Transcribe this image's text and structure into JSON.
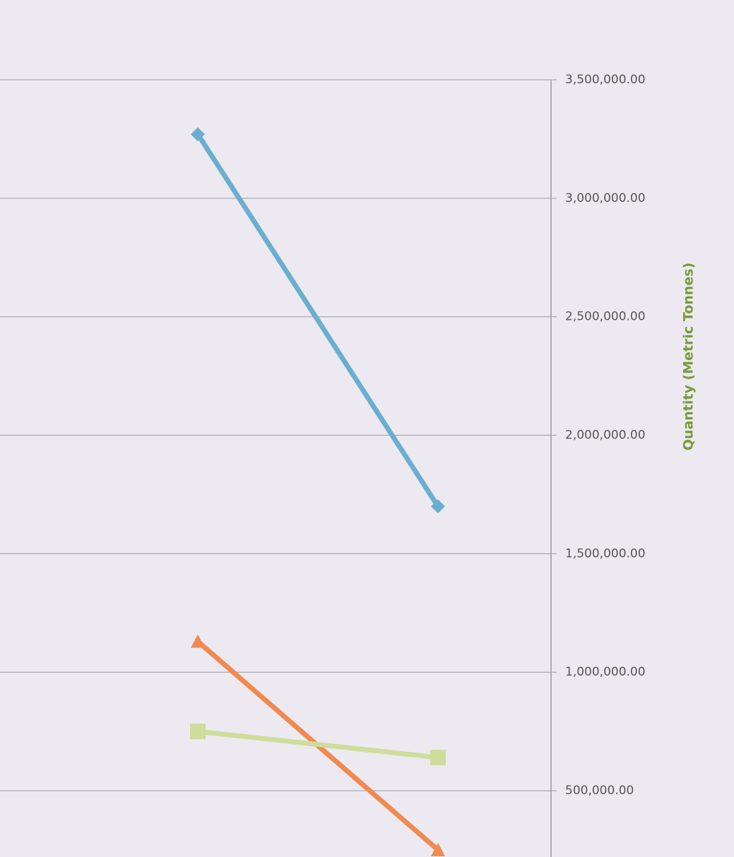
{
  "chart_data": {
    "type": "line",
    "y_axis_label": "Quantity (Metric Tonnes)",
    "categories": [
      null,
      null
    ],
    "series": [
      {
        "color": "#6aaed0",
        "values": [
          1700000,
          3270000
        ],
        "marker": "diamond"
      },
      {
        "color": "#f08a50",
        "values": [
          250000,
          1130000
        ],
        "marker": "triangle"
      },
      {
        "color": "#cfdc9c",
        "values": [
          640000,
          750000
        ],
        "marker": "square"
      }
    ],
    "ylim": [
      250000,
      3500000
    ],
    "yticks": [
      {
        "value": 500000,
        "label": "500,000.00"
      },
      {
        "value": 1000000,
        "label": "1,000,000.00"
      },
      {
        "value": 1500000,
        "label": "1,500,000.00"
      },
      {
        "value": 2000000,
        "label": "2,000,000.00"
      },
      {
        "value": 2500000,
        "label": "2,500,000.00"
      },
      {
        "value": 3000000,
        "label": "3,000,000.00"
      },
      {
        "value": 3500000,
        "label": "3,500,000.00"
      }
    ],
    "grid": true
  }
}
